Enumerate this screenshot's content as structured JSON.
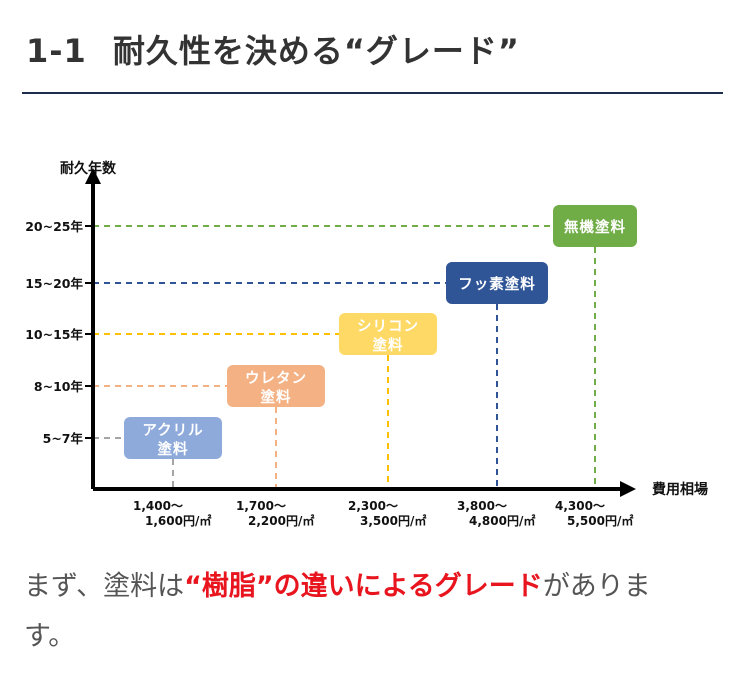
{
  "heading": {
    "number": "1-1",
    "title": "耐久性を決める“グレード”"
  },
  "chart_data": {
    "type": "scatter",
    "ylabel": "耐久年数",
    "xlabel": "費用相場",
    "y_ticks": [
      "5~7年",
      "8~10年",
      "10~15年",
      "15~20年",
      "20~25年"
    ],
    "x_ticks": [
      [
        "1,400～",
        "1,600円/㎡"
      ],
      [
        "1,700～",
        "2,200円/㎡"
      ],
      [
        "2,300～",
        "3,500円/㎡"
      ],
      [
        "3,800～",
        "4,800円/㎡"
      ],
      [
        "4,300～",
        "5,500円/㎡"
      ]
    ],
    "series": [
      {
        "name": "アクリル塗料",
        "label_lines": [
          "アクリル",
          "塗料"
        ],
        "durability": "5~7年",
        "cost": "1,400～1,600円/㎡",
        "color": "#8eaadb"
      },
      {
        "name": "ウレタン塗料",
        "label_lines": [
          "ウレタン",
          "塗料"
        ],
        "durability": "8~10年",
        "cost": "1,700～2,200円/㎡",
        "color": "#f4b183"
      },
      {
        "name": "シリコン塗料",
        "label_lines": [
          "シリコン",
          "塗料"
        ],
        "durability": "10~15年",
        "cost": "2,300～3,500円/㎡",
        "color": "#ffd966"
      },
      {
        "name": "フッ素塗料",
        "label_lines": [
          "フッ素塗料"
        ],
        "durability": "15~20年",
        "cost": "3,800～4,800円/㎡",
        "color": "#2f5597"
      },
      {
        "name": "無機塗料",
        "label_lines": [
          "無機塗料"
        ],
        "durability": "20~25年",
        "cost": "4,300～5,500円/㎡",
        "color": "#70ad47"
      }
    ],
    "tick_colors": [
      "#a5a5a5",
      "#f4b183",
      "#ffc000",
      "#2f5597",
      "#70ad47"
    ],
    "axis_color": "#000000"
  },
  "body": {
    "text_before": "まず、塗料は",
    "highlight": "“樹脂”の違いによるグレード",
    "text_after": "がありま\nす。",
    "highlight_color": "#e8141e"
  }
}
